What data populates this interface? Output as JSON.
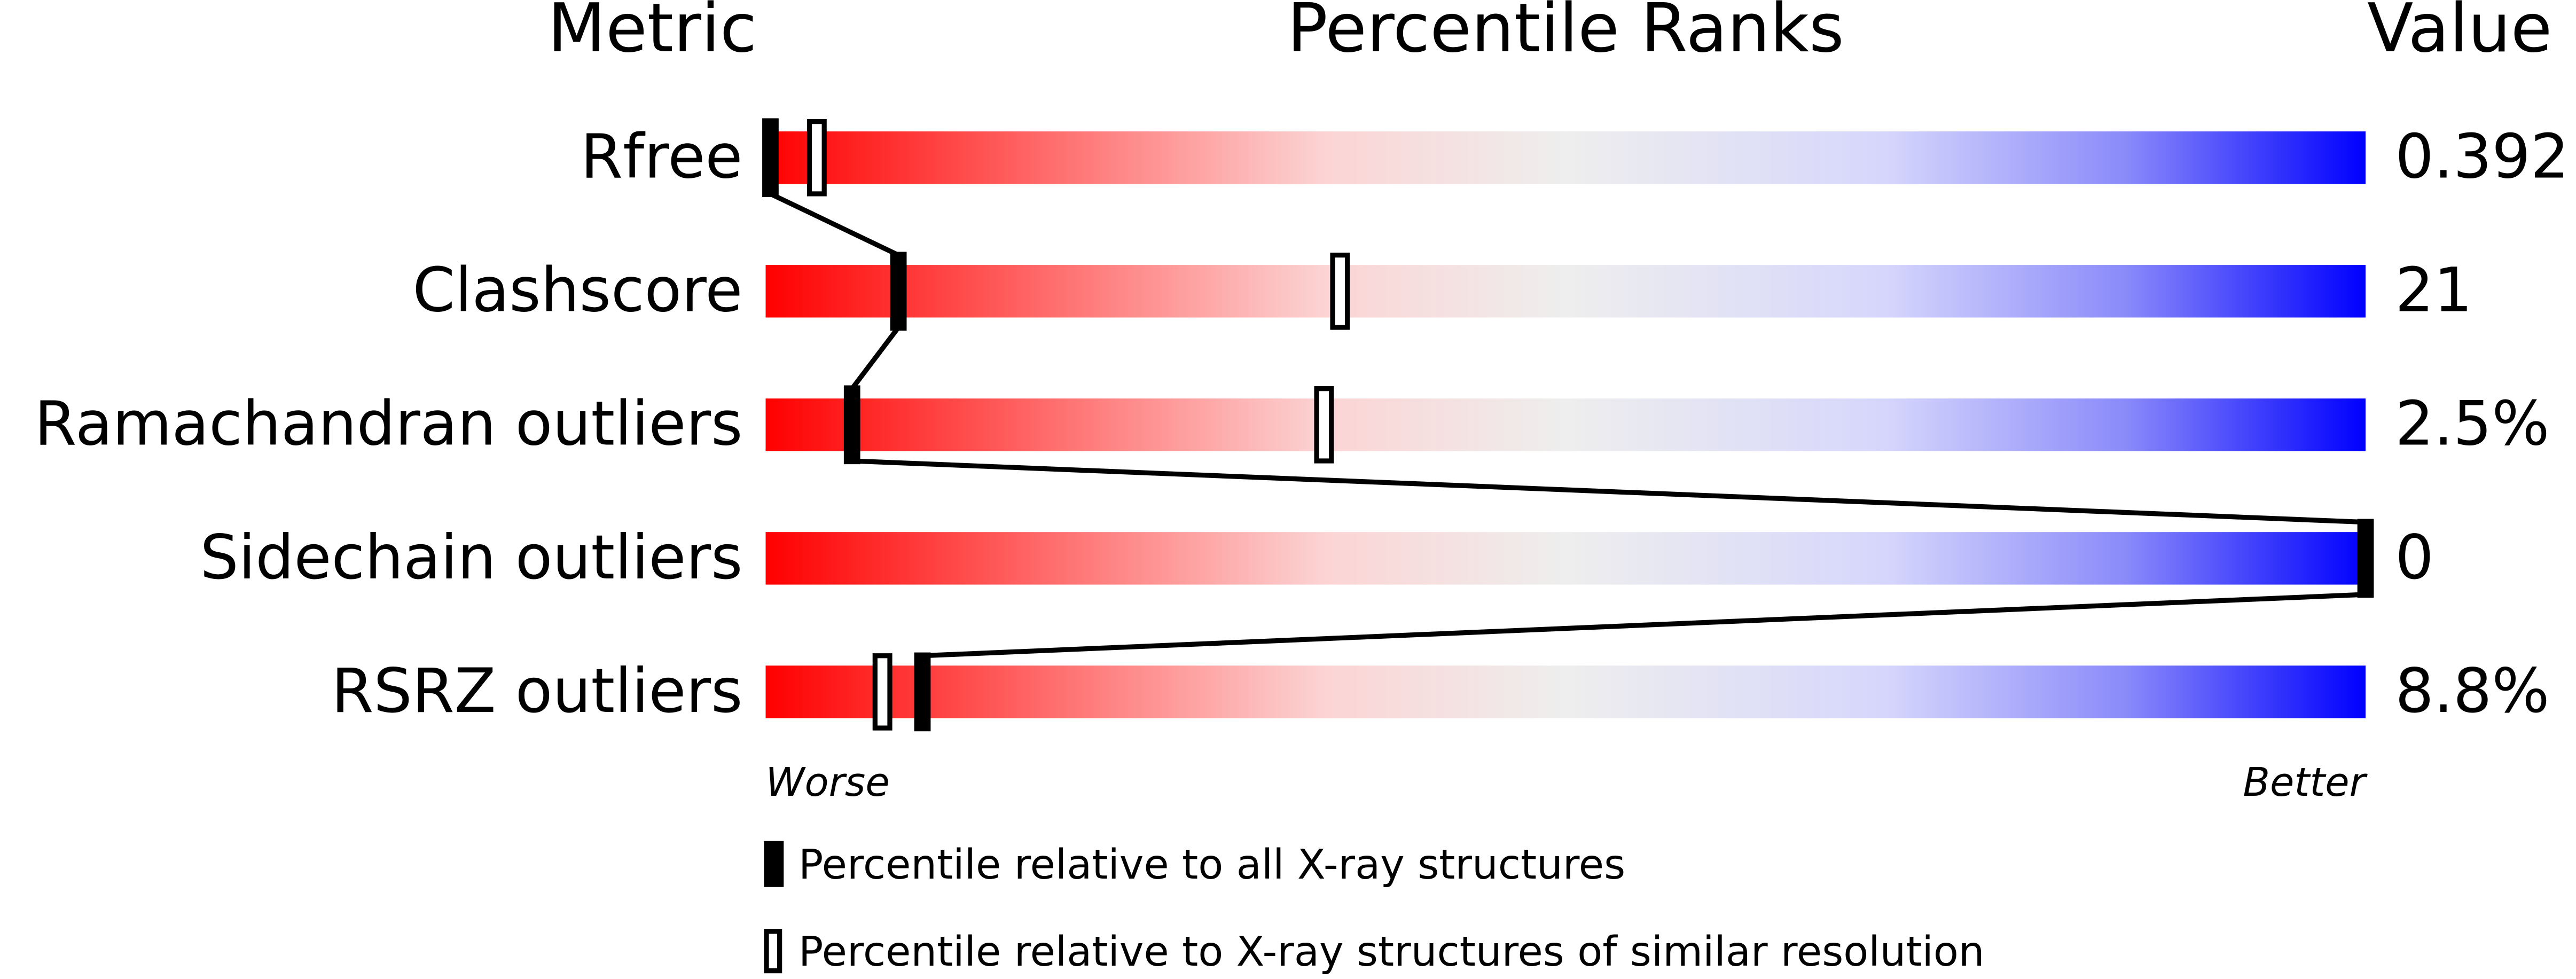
{
  "chart_data": {
    "type": "percentile-slider",
    "headers": {
      "metric": "Metric",
      "ranks": "Percentile Ranks",
      "value": "Value"
    },
    "categories": [
      "Rfree",
      "Clashscore",
      "Ramachandran outliers",
      "Sidechain outliers",
      "RSRZ outliers"
    ],
    "metric_values": [
      "0.392",
      "21",
      "2.5%",
      "0",
      "8.8%"
    ],
    "xlim": [
      0,
      100
    ],
    "worse_label": "Worse",
    "better_label": "Better",
    "series": [
      {
        "name": "Percentile relative to all X-ray structures",
        "style": "filled",
        "color": "#000000",
        "values": [
          0.3,
          8.3,
          5.4,
          100,
          9.8
        ]
      },
      {
        "name": "Percentile relative to X-ray structures of similar resolution",
        "style": "open",
        "color": "#000000",
        "values": [
          3.2,
          35.9,
          34.9,
          null,
          7.3
        ]
      }
    ]
  }
}
